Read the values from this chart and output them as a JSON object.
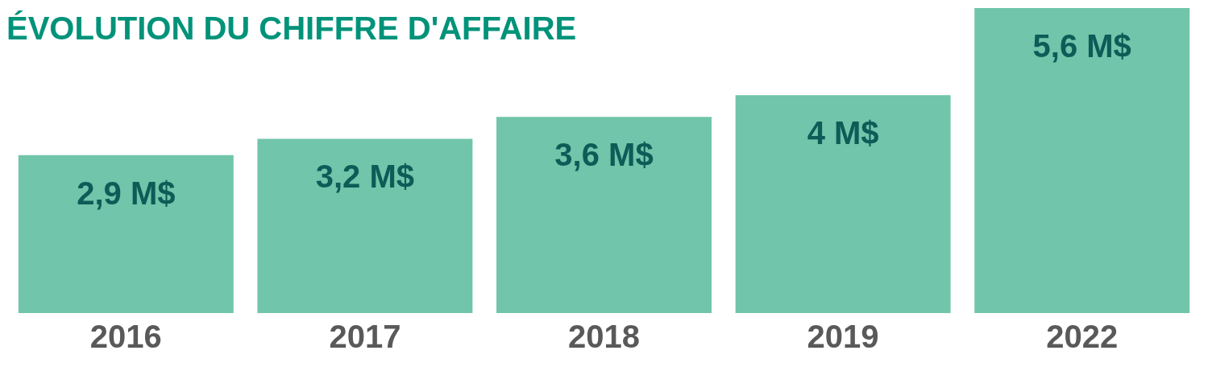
{
  "chart_data": {
    "type": "bar",
    "title": "ÉVOLUTION DU CHIFFRE D'AFFAIRE",
    "categories": [
      "2016",
      "2017",
      "2018",
      "2019",
      "2022"
    ],
    "values": [
      2.9,
      3.2,
      3.6,
      4,
      5.6
    ],
    "value_labels": [
      "2,9 M$",
      "3,2 M$",
      "3,6 M$",
      "4 M$",
      "5,6 M$"
    ],
    "color": "#70c5aa",
    "grid": false,
    "legend": false
  }
}
